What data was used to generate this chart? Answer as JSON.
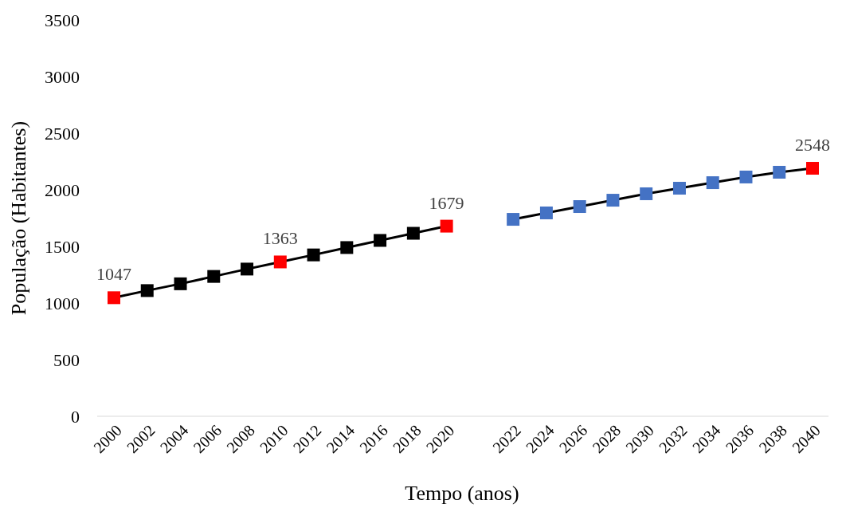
{
  "chart_data": {
    "type": "line",
    "xlabel": "Tempo (anos)",
    "ylabel": "População (Habitantes)",
    "categories": [
      "2000",
      "2002",
      "2004",
      "2006",
      "2008",
      "2010",
      "2012",
      "2014",
      "2016",
      "2018",
      "2020",
      null,
      "2022",
      "2024",
      "2026",
      "2028",
      "2030",
      "2032",
      "2034",
      "2036",
      "2038",
      "2040"
    ],
    "series": [
      {
        "color": "#000000",
        "colors": [
          "#ff0000",
          "#000000",
          "#000000",
          "#000000",
          "#000000",
          "#ff0000",
          "#000000",
          "#000000",
          "#000000",
          "#000000",
          "#ff0000",
          null,
          null,
          null,
          null,
          null,
          null,
          null,
          null,
          null,
          null,
          null
        ],
        "values": [
          1047,
          1110,
          1170,
          1235,
          1300,
          1363,
          1425,
          1490,
          1553,
          1616,
          1679,
          null,
          null,
          null,
          null,
          null,
          null,
          null,
          null,
          null,
          null,
          null
        ]
      },
      {
        "color": "#000000",
        "colors": [
          null,
          null,
          null,
          null,
          null,
          null,
          null,
          null,
          null,
          null,
          null,
          null,
          "#4472c4",
          "#4472c4",
          "#4472c4",
          "#4472c4",
          "#4472c4",
          "#4472c4",
          "#4472c4",
          "#4472c4",
          "#4472c4",
          "#ff0000"
        ],
        "values": [
          null,
          null,
          null,
          null,
          null,
          null,
          null,
          null,
          null,
          null,
          null,
          null,
          1739,
          1796,
          1852,
          1908,
          1965,
          2014,
          2063,
          2113,
          2155,
          2190
        ]
      }
    ],
    "annotations": [
      {
        "text": "1047",
        "x": "2000",
        "y": 1047
      },
      {
        "text": "1363",
        "x": "2010",
        "y": 1363
      },
      {
        "text": "1679",
        "x": "2020",
        "y": 1679
      },
      {
        "text": "2548",
        "x": "2040",
        "y": 2190
      }
    ],
    "ylim": [
      0,
      3500
    ],
    "yticks": [
      0,
      500,
      1000,
      1500,
      2000,
      2500,
      3000,
      3500
    ],
    "grid": false,
    "marker": "square",
    "line_style": "solid"
  }
}
